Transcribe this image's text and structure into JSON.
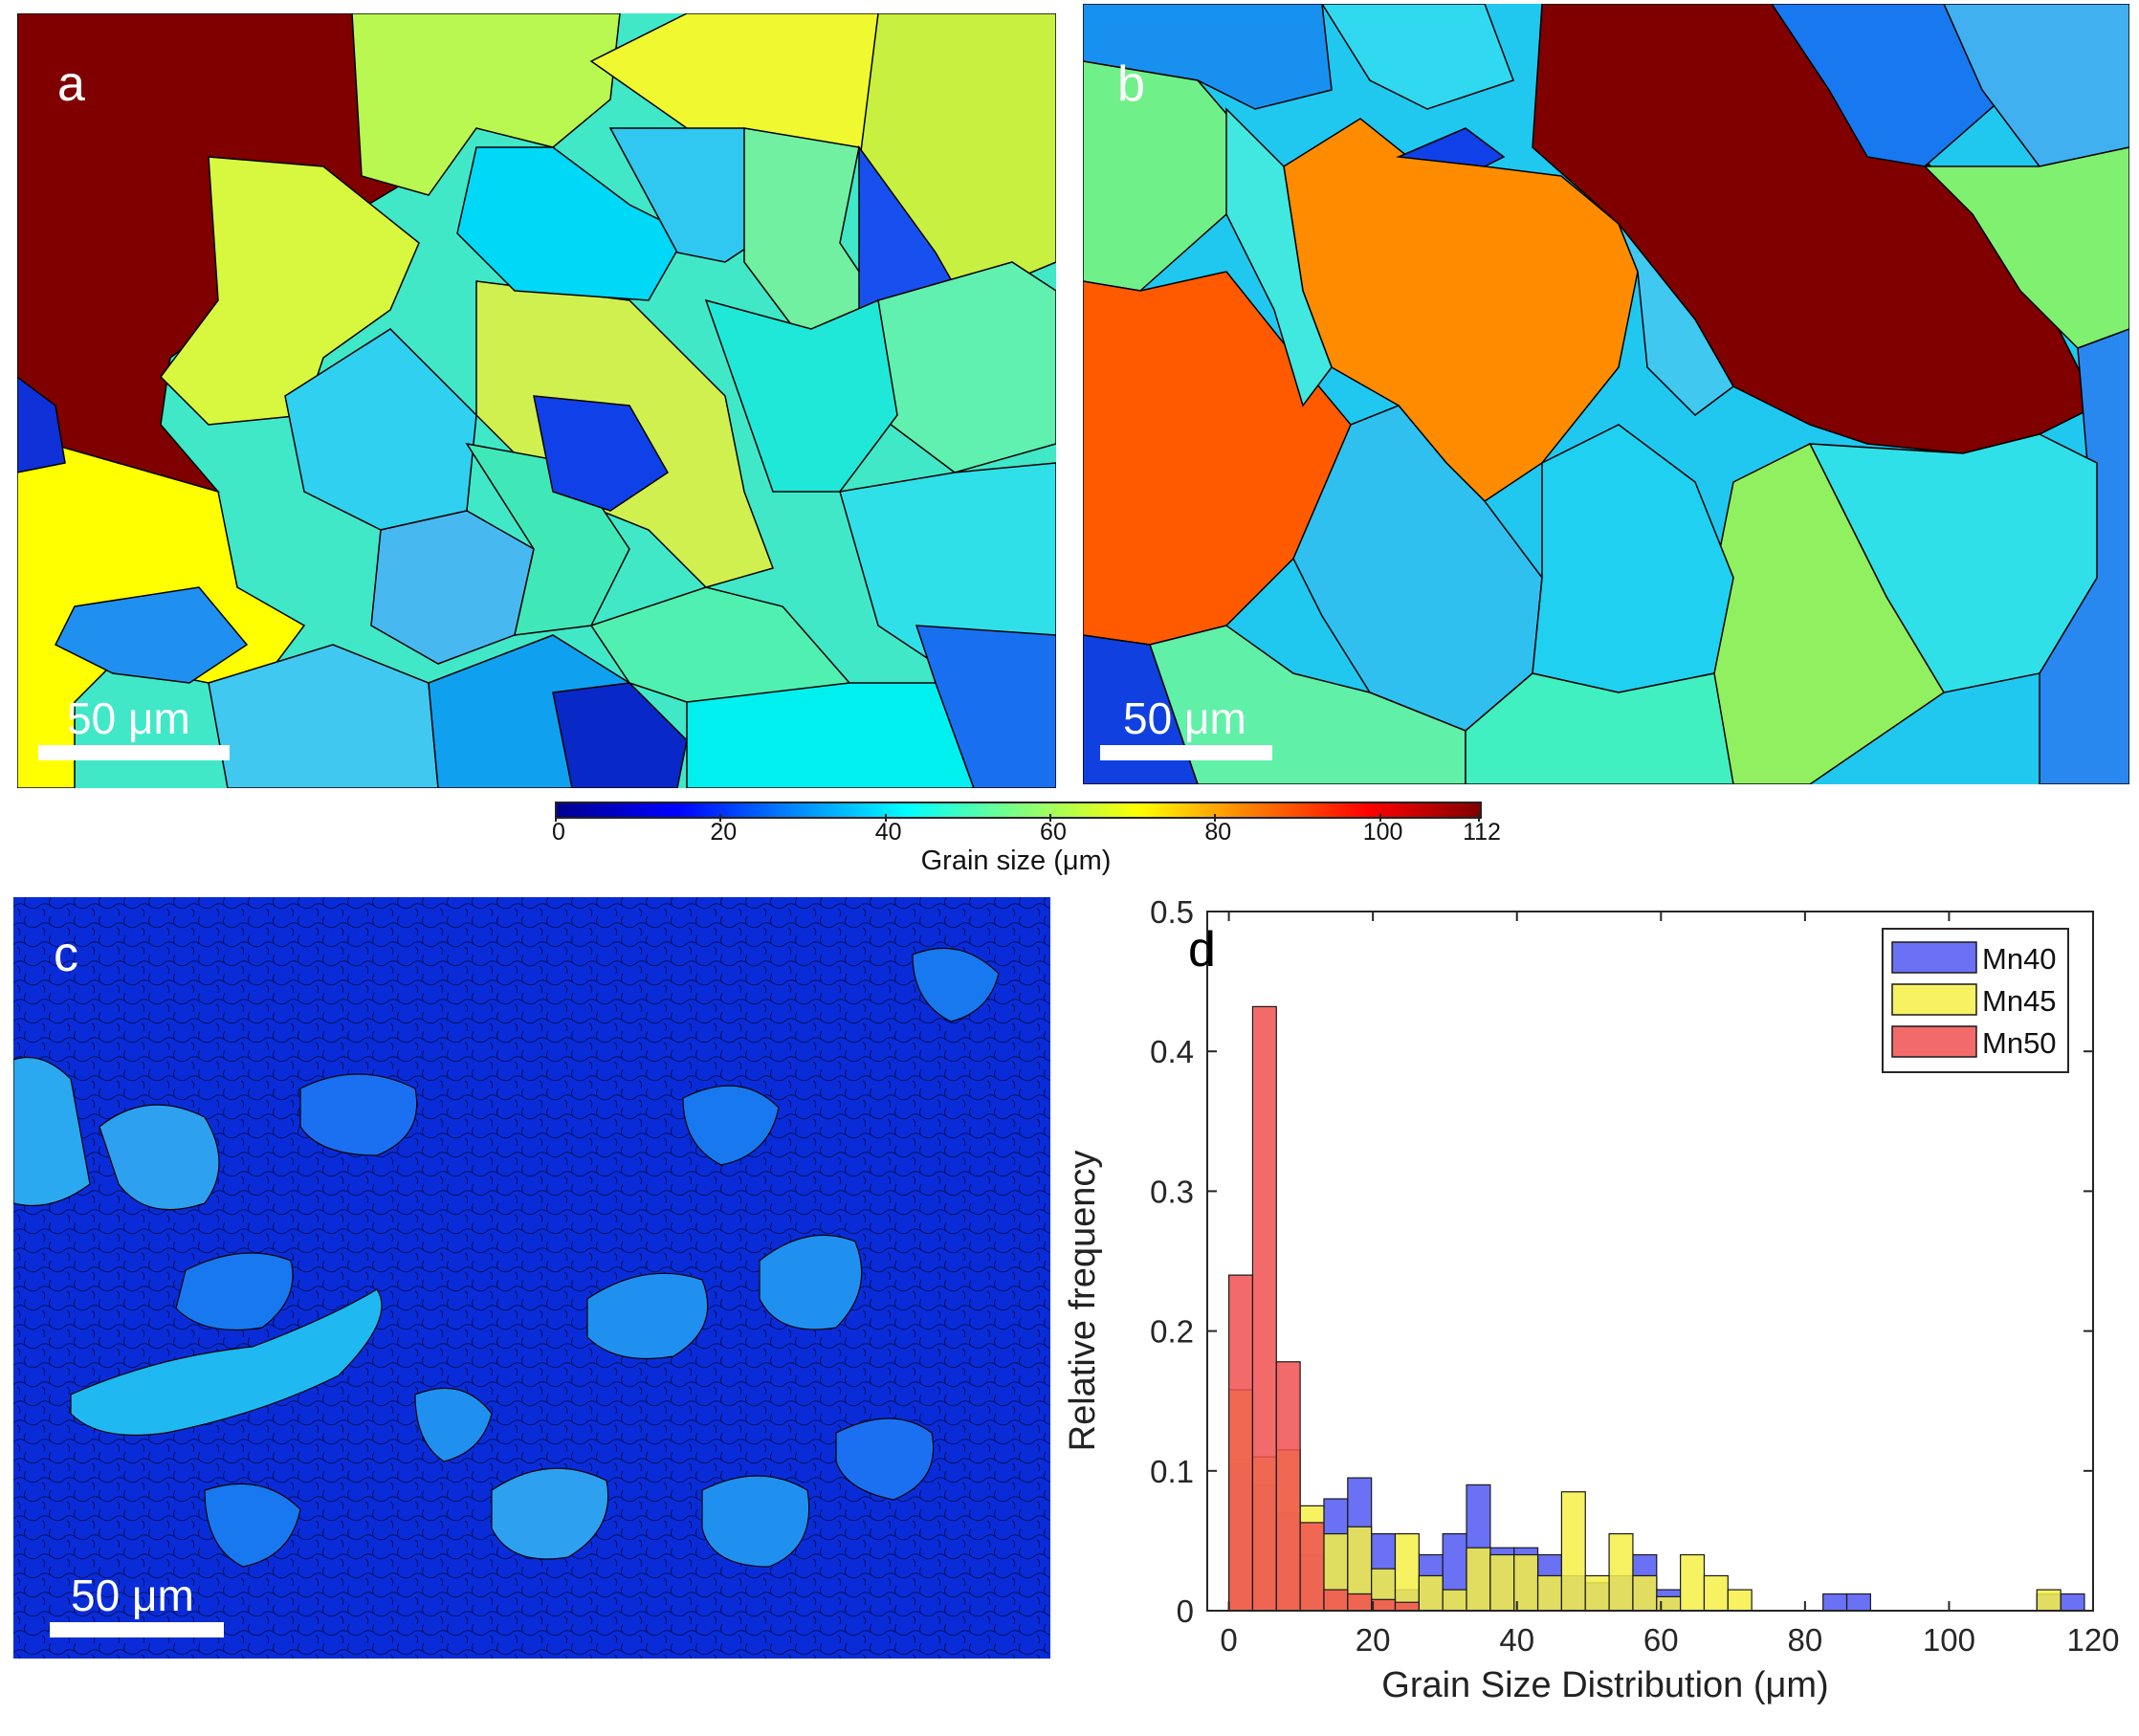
{
  "panels": {
    "a": {
      "label": "a",
      "scale_label": "50 μm"
    },
    "b": {
      "label": "b",
      "scale_label": "50 μm"
    },
    "c": {
      "label": "c",
      "scale_label": "50 μm"
    },
    "d": {
      "label": "d"
    }
  },
  "colorbar": {
    "title": "Grain size (μm)",
    "ticks": [
      "0",
      "20",
      "40",
      "60",
      "80",
      "100",
      "112"
    ],
    "range": [
      0,
      112
    ],
    "colormap": "jet"
  },
  "colors": {
    "mn40": "#5058f2",
    "mn45": "#f4f046",
    "mn50": "#f05050",
    "grain_dark_red": "#800000",
    "grain_orange": "#ff8800",
    "grain_yellow": "#ffff00",
    "grain_cyan": "#00f0f0",
    "grain_blue": "#0040ff"
  },
  "chart_data": {
    "type": "bar",
    "title": "",
    "xlabel": "Grain Size Distribution (μm)",
    "ylabel": "Relative frequency",
    "xlim": [
      -3,
      120
    ],
    "ylim": [
      0,
      0.5
    ],
    "xticks": [
      "0",
      "20",
      "40",
      "60",
      "80",
      "100",
      "120"
    ],
    "yticks": [
      "0",
      "0.1",
      "0.2",
      "0.3",
      "0.4",
      "0.5"
    ],
    "legend_position": "top-right",
    "bin_width": 3.3,
    "series": [
      {
        "name": "Mn40",
        "bins": [
          [
            0,
            0.105
          ],
          [
            3.3,
            0.09
          ],
          [
            6.6,
            0.07
          ],
          [
            9.9,
            0.04
          ],
          [
            13.2,
            0.08
          ],
          [
            16.5,
            0.095
          ],
          [
            19.8,
            0.055
          ],
          [
            23.1,
            0.015
          ],
          [
            26.4,
            0.04
          ],
          [
            29.7,
            0.055
          ],
          [
            33,
            0.09
          ],
          [
            36.3,
            0.045
          ],
          [
            39.6,
            0.045
          ],
          [
            42.9,
            0.04
          ],
          [
            46.2,
            0.025
          ],
          [
            49.5,
            0.02
          ],
          [
            52.8,
            0.025
          ],
          [
            56.1,
            0.04
          ],
          [
            59.4,
            0.015
          ],
          [
            82.5,
            0.012
          ],
          [
            85.8,
            0.012
          ],
          [
            112.2,
            0.012
          ],
          [
            115.5,
            0.012
          ]
        ]
      },
      {
        "name": "Mn45",
        "bins": [
          [
            0,
            0.158
          ],
          [
            3.3,
            0.11
          ],
          [
            6.6,
            0.115
          ],
          [
            9.9,
            0.075
          ],
          [
            13.2,
            0.055
          ],
          [
            16.5,
            0.06
          ],
          [
            19.8,
            0.03
          ],
          [
            23.1,
            0.055
          ],
          [
            26.4,
            0.025
          ],
          [
            29.7,
            0.015
          ],
          [
            33,
            0.045
          ],
          [
            36.3,
            0.04
          ],
          [
            39.6,
            0.04
          ],
          [
            42.9,
            0.025
          ],
          [
            46.2,
            0.085
          ],
          [
            49.5,
            0.025
          ],
          [
            52.8,
            0.055
          ],
          [
            56.1,
            0.025
          ],
          [
            59.4,
            0.01
          ],
          [
            62.7,
            0.04
          ],
          [
            66,
            0.025
          ],
          [
            69.3,
            0.015
          ],
          [
            112.2,
            0.015
          ]
        ]
      },
      {
        "name": "Mn50",
        "bins": [
          [
            0,
            0.24
          ],
          [
            3.3,
            0.432
          ],
          [
            6.6,
            0.178
          ],
          [
            9.9,
            0.063
          ],
          [
            13.2,
            0.015
          ],
          [
            16.5,
            0.012
          ],
          [
            19.8,
            0.008
          ],
          [
            23.1,
            0.006
          ]
        ]
      }
    ]
  }
}
